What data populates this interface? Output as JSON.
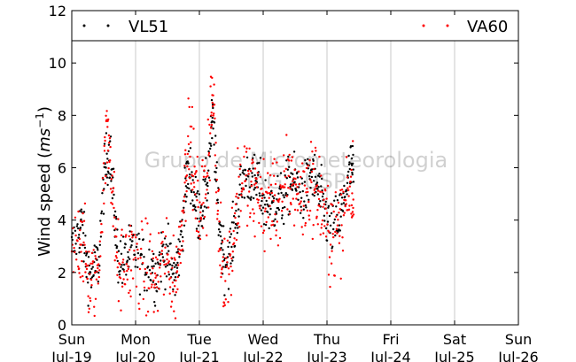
{
  "chart_data": {
    "type": "scatter",
    "title": "",
    "xlabel": "",
    "ylabel_text": "Wind speed (",
    "ylabel_unit": "ms",
    "ylabel_unit_exp": "−1",
    "ylabel_close": ")",
    "ylim": [
      0,
      12
    ],
    "yticks": [
      0,
      2,
      4,
      6,
      8,
      10,
      12
    ],
    "xlim": [
      0,
      7
    ],
    "xticks": [
      {
        "x": 0,
        "day": "Sun",
        "date": "Jul-19"
      },
      {
        "x": 1,
        "day": "Mon",
        "date": "Jul-20"
      },
      {
        "x": 2,
        "day": "Tue",
        "date": "Jul-21"
      },
      {
        "x": 3,
        "day": "Wed",
        "date": "Jul-22"
      },
      {
        "x": 4,
        "day": "Thu",
        "date": "Jul-23"
      },
      {
        "x": 5,
        "day": "Fri",
        "date": "Jul-24"
      },
      {
        "x": 6,
        "day": "Sat",
        "date": "Jul-25"
      },
      {
        "x": 7,
        "day": "Sun",
        "date": "Jul-26"
      }
    ],
    "grid": "vertical",
    "legend_placement": "top",
    "watermark_line1": "Grupo de Micrometeorologia",
    "watermark_line2": "IAG - USP",
    "series": [
      {
        "name": "VL51",
        "color": "#000000",
        "spread": 0.55,
        "points": [
          [
            0.0,
            2.8
          ],
          [
            0.1,
            3.5
          ],
          [
            0.15,
            3.9
          ],
          [
            0.22,
            2.6
          ],
          [
            0.28,
            1.9
          ],
          [
            0.35,
            2.1
          ],
          [
            0.42,
            2.4
          ],
          [
            0.5,
            5.4
          ],
          [
            0.55,
            6.4
          ],
          [
            0.6,
            6.6
          ],
          [
            0.66,
            4.6
          ],
          [
            0.72,
            2.7
          ],
          [
            0.8,
            2.3
          ],
          [
            0.88,
            2.6
          ],
          [
            0.95,
            2.9
          ],
          [
            1.05,
            2.6
          ],
          [
            1.15,
            2.2
          ],
          [
            1.25,
            2.4
          ],
          [
            1.32,
            1.8
          ],
          [
            1.4,
            2.6
          ],
          [
            1.48,
            2.8
          ],
          [
            1.55,
            2.2
          ],
          [
            1.62,
            1.8
          ],
          [
            1.68,
            2.8
          ],
          [
            1.75,
            4.2
          ],
          [
            1.8,
            5.6
          ],
          [
            1.86,
            5.9
          ],
          [
            1.92,
            4.8
          ],
          [
            1.98,
            4.2
          ],
          [
            2.05,
            4.6
          ],
          [
            2.12,
            5.2
          ],
          [
            2.18,
            7.3
          ],
          [
            2.22,
            7.8
          ],
          [
            2.28,
            4.8
          ],
          [
            2.34,
            3.4
          ],
          [
            2.4,
            2.4
          ],
          [
            2.48,
            2.8
          ],
          [
            2.55,
            3.6
          ],
          [
            2.62,
            4.8
          ],
          [
            2.7,
            5.6
          ],
          [
            2.78,
            5.7
          ],
          [
            2.85,
            5.3
          ],
          [
            2.92,
            5.5
          ],
          [
            3.0,
            4.7
          ],
          [
            3.08,
            4.5
          ],
          [
            3.15,
            4.5
          ],
          [
            3.22,
            4.8
          ],
          [
            3.3,
            4.7
          ],
          [
            3.38,
            5.2
          ],
          [
            3.45,
            5.6
          ],
          [
            3.52,
            5.3
          ],
          [
            3.6,
            5.0
          ],
          [
            3.68,
            5.2
          ],
          [
            3.75,
            5.8
          ],
          [
            3.82,
            5.4
          ],
          [
            3.88,
            5.0
          ],
          [
            3.95,
            4.5
          ],
          [
            4.02,
            3.8
          ],
          [
            4.1,
            3.7
          ],
          [
            4.18,
            4.0
          ],
          [
            4.25,
            4.4
          ],
          [
            4.32,
            5.6
          ],
          [
            4.38,
            6.0
          ],
          [
            4.42,
            5.7
          ]
        ]
      },
      {
        "name": "VA60",
        "color": "#ff0000",
        "spread": 0.85,
        "points": [
          [
            0.0,
            2.4
          ],
          [
            0.1,
            3.1
          ],
          [
            0.15,
            3.6
          ],
          [
            0.22,
            2.3
          ],
          [
            0.28,
            1.6
          ],
          [
            0.35,
            1.7
          ],
          [
            0.42,
            2.0
          ],
          [
            0.5,
            6.0
          ],
          [
            0.55,
            7.2
          ],
          [
            0.6,
            6.9
          ],
          [
            0.66,
            4.2
          ],
          [
            0.72,
            2.2
          ],
          [
            0.8,
            2.0
          ],
          [
            0.88,
            2.4
          ],
          [
            0.95,
            2.6
          ],
          [
            1.05,
            2.3
          ],
          [
            1.15,
            2.0
          ],
          [
            1.25,
            2.1
          ],
          [
            1.32,
            1.5
          ],
          [
            1.4,
            2.4
          ],
          [
            1.48,
            2.5
          ],
          [
            1.55,
            2.0
          ],
          [
            1.62,
            1.6
          ],
          [
            1.68,
            2.6
          ],
          [
            1.75,
            4.8
          ],
          [
            1.8,
            6.6
          ],
          [
            1.86,
            6.9
          ],
          [
            1.92,
            5.4
          ],
          [
            1.98,
            4.4
          ],
          [
            2.05,
            4.6
          ],
          [
            2.12,
            5.6
          ],
          [
            2.18,
            8.2
          ],
          [
            2.22,
            8.8
          ],
          [
            2.28,
            4.6
          ],
          [
            2.34,
            3.0
          ],
          [
            2.4,
            1.9
          ],
          [
            2.48,
            2.4
          ],
          [
            2.55,
            3.9
          ],
          [
            2.62,
            5.2
          ],
          [
            2.7,
            5.6
          ],
          [
            2.78,
            5.3
          ],
          [
            2.85,
            4.9
          ],
          [
            2.92,
            5.1
          ],
          [
            3.0,
            4.5
          ],
          [
            3.08,
            4.6
          ],
          [
            3.15,
            4.9
          ],
          [
            3.22,
            4.7
          ],
          [
            3.3,
            4.9
          ],
          [
            3.38,
            5.3
          ],
          [
            3.45,
            5.5
          ],
          [
            3.52,
            5.2
          ],
          [
            3.6,
            4.8
          ],
          [
            3.68,
            5.0
          ],
          [
            3.75,
            5.6
          ],
          [
            3.82,
            5.2
          ],
          [
            3.88,
            4.8
          ],
          [
            3.95,
            4.2
          ],
          [
            4.02,
            3.6
          ],
          [
            4.1,
            3.5
          ],
          [
            4.18,
            3.7
          ],
          [
            4.25,
            4.1
          ],
          [
            4.32,
            5.2
          ],
          [
            4.38,
            5.4
          ],
          [
            4.42,
            5.1
          ]
        ]
      }
    ]
  }
}
